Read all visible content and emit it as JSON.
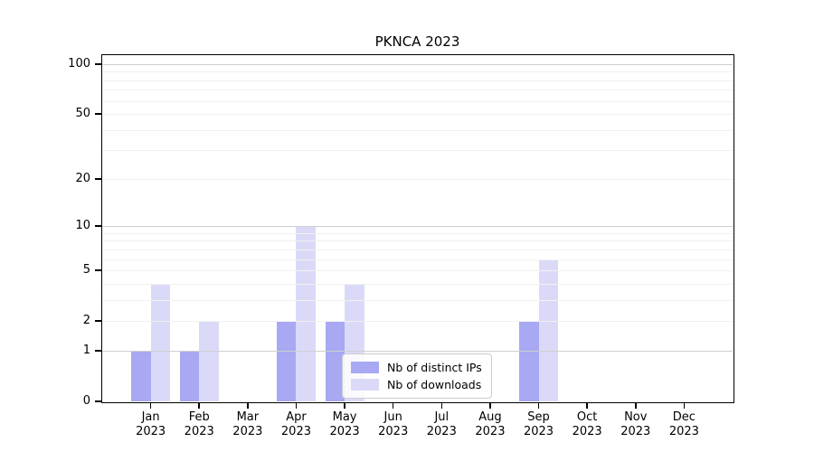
{
  "figure": {
    "title": "PKNCA 2023"
  },
  "chart_data": {
    "type": "bar",
    "title": "PKNCA 2023",
    "categories": [
      "Jan 2023",
      "Feb 2023",
      "Mar 2023",
      "Apr 2023",
      "May 2023",
      "Jun 2023",
      "Jul 2023",
      "Aug 2023",
      "Sep 2023",
      "Oct 2023",
      "Nov 2023",
      "Dec 2023"
    ],
    "series": [
      {
        "name": "Nb of distinct IPs",
        "color": "#a8a8f3",
        "values": [
          1,
          1,
          0,
          2,
          2,
          0,
          0,
          0,
          2,
          0,
          0,
          0
        ]
      },
      {
        "name": "Nb of downloads",
        "color": "#dadaf8",
        "values": [
          4,
          2,
          0,
          10,
          4,
          0,
          0,
          0,
          6,
          0,
          0,
          0
        ]
      }
    ],
    "yscale": "log1p",
    "yticks": [
      0,
      1,
      2,
      5,
      10,
      20,
      50,
      100
    ],
    "ylim": [
      0,
      113
    ],
    "xlabel": "",
    "ylabel": "",
    "grid": "horizontal",
    "grid_major_values": [
      1,
      10,
      100
    ],
    "legend_position": "bottom-center",
    "colors": {
      "spine": "#000000",
      "grid_major": "#cfcfcf",
      "grid_minor": "#f1f1f1",
      "legend_border": "#cccccc"
    }
  }
}
